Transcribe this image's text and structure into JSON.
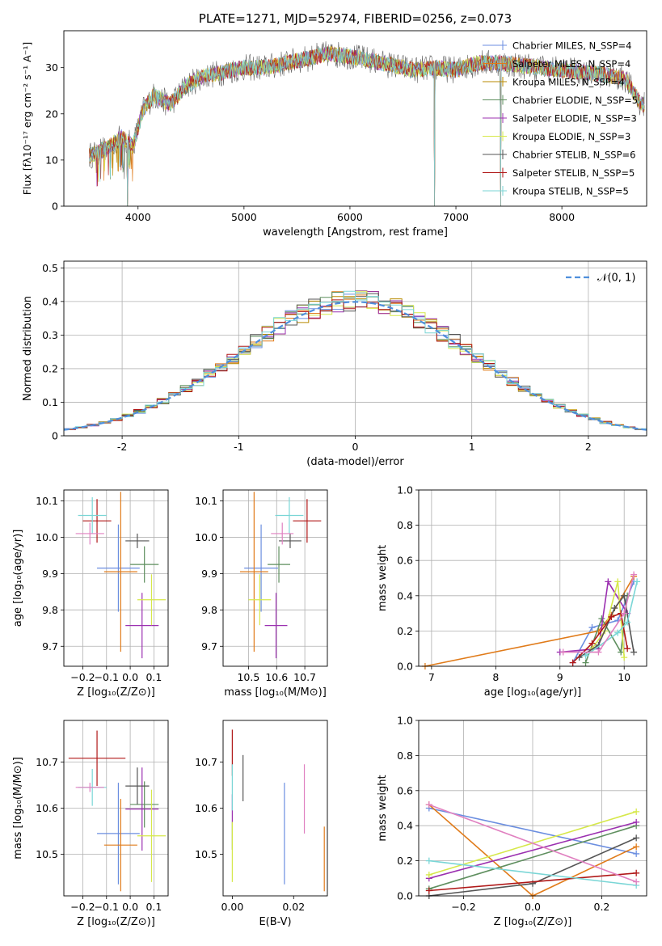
{
  "colors": {
    "blue": "#6b8ee0",
    "orange": "#e07b1a",
    "olive": "#b88a00",
    "green": "#5f8f5f",
    "purple": "#9b30b0",
    "yellow": "#d6e84a",
    "gray": "#555555",
    "red": "#b01818",
    "cyan": "#7ad6d6",
    "pink": "#e080c0",
    "gauss": "#4f8fdc"
  },
  "chart_data": [
    {
      "id": "spectrum",
      "type": "line",
      "title": "PLATE=1271, MJD=52974, FIBERID=0256, z=0.073",
      "xlabel": "wavelength [Angstrom, rest frame]",
      "ylabel": "Flux [fλ10⁻¹⁷ erg cm⁻² s⁻¹ A⁻¹]",
      "xlim": [
        3300,
        8800
      ],
      "ylim": [
        0,
        38
      ],
      "xticks": [
        4000,
        5000,
        6000,
        7000,
        8000
      ],
      "yticks": [
        0,
        10,
        20,
        30
      ],
      "legend_position": "top-right",
      "approx_continuum": {
        "x": [
          3550,
          3700,
          3850,
          3950,
          4050,
          4150,
          4300,
          4450,
          4600,
          4800,
          5000,
          5200,
          5400,
          5600,
          5800,
          6000,
          6200,
          6400,
          6600,
          6800,
          7000,
          7200,
          7400,
          7600,
          7800,
          8000,
          8200,
          8400,
          8600,
          8750
        ],
        "y": [
          11,
          12.5,
          15,
          13,
          21,
          24,
          22,
          26,
          28,
          29,
          30,
          30,
          31,
          32,
          33,
          32.5,
          31.5,
          30.5,
          29.5,
          30,
          29.5,
          31,
          31,
          30.5,
          30,
          29.5,
          29,
          28.5,
          27.5,
          22
        ]
      },
      "drops_to_zero_at": [
        3900,
        6800,
        7420
      ],
      "legend": [
        {
          "label": "Chabrier MILES, N_SSP=4",
          "color": "blue"
        },
        {
          "label": "Salpeter MILES, N_SSP=4",
          "color": "orange"
        },
        {
          "label": "Kroupa MILES, N_SSP=4",
          "color": "olive"
        },
        {
          "label": "Chabrier ELODIE, N_SSP=5",
          "color": "green"
        },
        {
          "label": "Salpeter ELODIE, N_SSP=3",
          "color": "purple"
        },
        {
          "label": "Kroupa ELODIE, N_SSP=3",
          "color": "yellow"
        },
        {
          "label": "Chabrier STELIB, N_SSP=6",
          "color": "gray"
        },
        {
          "label": "Salpeter STELIB, N_SSP=5",
          "color": "red"
        },
        {
          "label": "Kroupa STELIB, N_SSP=5",
          "color": "cyan"
        }
      ]
    },
    {
      "id": "residuals",
      "type": "histogram",
      "xlabel": "(data-model)/error",
      "ylabel": "Normed distribution",
      "xlim": [
        -2.5,
        2.5
      ],
      "ylim": [
        0,
        0.52
      ],
      "xticks": [
        -2,
        -1,
        0,
        1,
        2
      ],
      "yticks": [
        0.0,
        0.1,
        0.2,
        0.3,
        0.4,
        0.5
      ],
      "grid": true,
      "legend_position": "top-right",
      "gaussian_label": "𝒩(0, 1)",
      "bin_width": 0.1,
      "bin_start": -2.5,
      "series_colors": [
        "blue",
        "orange",
        "olive",
        "green",
        "purple",
        "yellow",
        "gray",
        "red",
        "cyan"
      ]
    },
    {
      "id": "age_vs_Z",
      "type": "scatter",
      "xlabel": "Z [log₁₀(Z/Z⊙)]",
      "ylabel": "age  [log₁₀(age/yr)]",
      "xlim": [
        -0.28,
        0.16
      ],
      "ylim": [
        9.645,
        10.13
      ],
      "xticks": [
        -0.2,
        -0.1,
        0.0,
        0.1
      ],
      "xticklabels": [
        "−0.2",
        "−0.1",
        "0.0",
        "0.1"
      ],
      "yticks": [
        9.7,
        9.8,
        9.9,
        10.0,
        10.1
      ],
      "yticklabels": [
        "9.7",
        "9.8",
        "9.9",
        "10.0",
        "10.1"
      ],
      "grid": true,
      "points": [
        {
          "c": "blue",
          "x": -0.05,
          "xe": 0.09,
          "y": 9.915,
          "ye": 0.12
        },
        {
          "c": "orange",
          "x": -0.04,
          "xe": 0.07,
          "y": 9.905,
          "ye": 0.22
        },
        {
          "c": "green",
          "x": 0.06,
          "xe": 0.06,
          "y": 9.925,
          "ye": 0.05
        },
        {
          "c": "purple",
          "x": 0.05,
          "xe": 0.07,
          "y": 9.757,
          "ye": 0.09
        },
        {
          "c": "yellow",
          "x": 0.09,
          "xe": 0.06,
          "y": 9.828,
          "ye": 0.07
        },
        {
          "c": "gray",
          "x": 0.03,
          "xe": 0.05,
          "y": 9.99,
          "ye": 0.02
        },
        {
          "c": "red",
          "x": -0.14,
          "xe": 0.06,
          "y": 10.045,
          "ye": 0.06
        },
        {
          "c": "cyan",
          "x": -0.16,
          "xe": 0.06,
          "y": 10.06,
          "ye": 0.05
        },
        {
          "c": "pink",
          "x": -0.17,
          "xe": 0.06,
          "y": 10.01,
          "ye": 0.03
        }
      ]
    },
    {
      "id": "age_vs_mass",
      "type": "scatter",
      "xlabel": "mass [log₁₀(M/M⊙)]",
      "ylabel": "",
      "xlim": [
        10.41,
        10.78
      ],
      "ylim": [
        9.645,
        10.13
      ],
      "xticks": [
        10.5,
        10.6,
        10.7
      ],
      "xticklabels": [
        "10.5",
        "10.6",
        "10.7"
      ],
      "yticks": [
        9.7,
        9.8,
        9.9,
        10.0,
        10.1
      ],
      "yticklabels": [
        "9.7",
        "9.8",
        "9.9",
        "10.0",
        "10.1"
      ],
      "grid": true,
      "points": [
        {
          "c": "blue",
          "x": 10.545,
          "xe": 0.06,
          "y": 9.915,
          "ye": 0.12
        },
        {
          "c": "orange",
          "x": 10.52,
          "xe": 0.05,
          "y": 9.905,
          "ye": 0.22
        },
        {
          "c": "green",
          "x": 10.608,
          "xe": 0.04,
          "y": 9.925,
          "ye": 0.05
        },
        {
          "c": "purple",
          "x": 10.598,
          "xe": 0.04,
          "y": 9.757,
          "ye": 0.09
        },
        {
          "c": "yellow",
          "x": 10.54,
          "xe": 0.04,
          "y": 9.828,
          "ye": 0.07
        },
        {
          "c": "gray",
          "x": 10.648,
          "xe": 0.04,
          "y": 9.99,
          "ye": 0.02
        },
        {
          "c": "red",
          "x": 10.708,
          "xe": 0.05,
          "y": 10.045,
          "ye": 0.06
        },
        {
          "c": "cyan",
          "x": 10.645,
          "xe": 0.05,
          "y": 10.06,
          "ye": 0.05
        },
        {
          "c": "pink",
          "x": 10.62,
          "xe": 0.04,
          "y": 10.01,
          "ye": 0.03
        }
      ]
    },
    {
      "id": "weight_vs_age",
      "type": "line",
      "xlabel": "age  [log₁₀(age/yr)]",
      "ylabel": "mass weight",
      "xlim": [
        6.8,
        10.35
      ],
      "ylim": [
        0,
        1
      ],
      "xticks": [
        7,
        8,
        9,
        10
      ],
      "xticklabels": [
        "7",
        "8",
        "9",
        "10"
      ],
      "yticks": [
        0.0,
        0.2,
        0.4,
        0.6,
        0.8,
        1.0
      ],
      "yticklabels": [
        "0.0",
        "0.2",
        "0.4",
        "0.6",
        "0.8",
        "1.0"
      ],
      "grid": true,
      "series": [
        {
          "c": "blue",
          "x": [
            9.2,
            9.5,
            9.9,
            10.15
          ],
          "y": [
            0.02,
            0.22,
            0.26,
            0.48
          ]
        },
        {
          "c": "orange",
          "x": [
            6.9,
            9.6,
            9.8,
            10.15
          ],
          "y": [
            0.0,
            0.2,
            0.29,
            0.51
          ]
        },
        {
          "c": "green",
          "x": [
            9.4,
            9.65,
            9.95,
            10.05
          ],
          "y": [
            0.02,
            0.27,
            0.08,
            0.4
          ]
        },
        {
          "c": "purple",
          "x": [
            9.0,
            9.6,
            9.75,
            10.05
          ],
          "y": [
            0.08,
            0.1,
            0.48,
            0.3
          ]
        },
        {
          "c": "yellow",
          "x": [
            9.5,
            9.7,
            9.9,
            10.0
          ],
          "y": [
            0.1,
            0.2,
            0.48,
            0.05
          ]
        },
        {
          "c": "gray",
          "x": [
            9.3,
            9.6,
            9.85,
            10.0,
            10.15
          ],
          "y": [
            0.05,
            0.12,
            0.33,
            0.4,
            0.08
          ]
        },
        {
          "c": "red",
          "x": [
            9.2,
            9.5,
            9.8,
            9.95,
            10.05
          ],
          "y": [
            0.02,
            0.13,
            0.28,
            0.3,
            0.1
          ]
        },
        {
          "c": "cyan",
          "x": [
            9.4,
            9.9,
            10.05,
            10.2
          ],
          "y": [
            0.06,
            0.19,
            0.25,
            0.48
          ]
        },
        {
          "c": "pink",
          "x": [
            9.05,
            9.6,
            10.0,
            10.15
          ],
          "y": [
            0.08,
            0.08,
            0.3,
            0.52
          ]
        }
      ]
    },
    {
      "id": "mass_vs_Z",
      "type": "scatter",
      "xlabel": "Z [log₁₀(Z/Z⊙)]",
      "ylabel": "mass [log₁₀(M/M⊙)]",
      "xlim": [
        -0.28,
        0.16
      ],
      "ylim": [
        10.41,
        10.79
      ],
      "xticks": [
        -0.2,
        -0.1,
        0.0,
        0.1
      ],
      "xticklabels": [
        "−0.2",
        "−0.1",
        "0.0",
        "0.1"
      ],
      "yticks": [
        10.5,
        10.6,
        10.7
      ],
      "yticklabels": [
        "10.5",
        "10.6",
        "10.7"
      ],
      "grid": true,
      "points": [
        {
          "c": "blue",
          "x": -0.05,
          "xe": 0.09,
          "y": 10.545,
          "ye": 0.11
        },
        {
          "c": "orange",
          "x": -0.04,
          "xe": 0.07,
          "y": 10.52,
          "ye": 0.1
        },
        {
          "c": "green",
          "x": 0.06,
          "xe": 0.06,
          "y": 10.608,
          "ye": 0.05
        },
        {
          "c": "purple",
          "x": 0.05,
          "xe": 0.07,
          "y": 10.598,
          "ye": 0.09
        },
        {
          "c": "yellow",
          "x": 0.09,
          "xe": 0.06,
          "y": 10.54,
          "ye": 0.1
        },
        {
          "c": "gray",
          "x": 0.03,
          "xe": 0.05,
          "y": 10.648,
          "ye": 0.04
        },
        {
          "c": "red",
          "x": -0.14,
          "xe": 0.12,
          "y": 10.708,
          "ye": 0.06
        },
        {
          "c": "cyan",
          "x": -0.16,
          "xe": 0.06,
          "y": 10.645,
          "ye": 0.04
        },
        {
          "c": "pink",
          "x": -0.17,
          "xe": 0.06,
          "y": 10.645,
          "ye": 0.01
        }
      ]
    },
    {
      "id": "mass_vs_ebv",
      "type": "scatter",
      "xlabel": "E(B-V)",
      "ylabel": "",
      "xlim": [
        -0.003,
        0.031
      ],
      "ylim": [
        10.41,
        10.79
      ],
      "xticks": [
        0.0,
        0.02
      ],
      "xticklabels": [
        "0.00",
        "0.02"
      ],
      "yticks": [
        10.5,
        10.6,
        10.7
      ],
      "yticklabels": [
        "10.5",
        "10.6",
        "10.7"
      ],
      "grid": false,
      "points": [
        {
          "c": "blue",
          "x": 0.017,
          "y": 10.545,
          "ye": 0.11
        },
        {
          "c": "orange",
          "x": 0.03,
          "y": 10.49,
          "ye": 0.07
        },
        {
          "c": "green",
          "x": 0.0,
          "y": 10.54,
          "ye": 0.03
        },
        {
          "c": "purple",
          "x": 0.0,
          "y": 10.6,
          "ye": 0.03
        },
        {
          "c": "yellow",
          "x": 0.0,
          "y": 10.505,
          "ye": 0.065
        },
        {
          "c": "gray",
          "x": 0.0035,
          "y": 10.665,
          "ye": 0.05
        },
        {
          "c": "red",
          "x": 0.0,
          "y": 10.72,
          "ye": 0.05
        },
        {
          "c": "cyan",
          "x": 0.0,
          "y": 10.645,
          "ye": 0.05
        },
        {
          "c": "pink",
          "x": 0.0235,
          "y": 10.62,
          "ye": 0.075
        }
      ]
    },
    {
      "id": "weight_vs_Z",
      "type": "line",
      "xlabel": "Z [log₁₀(Z/Z⊙)]",
      "ylabel": "mass weight",
      "xlim": [
        -0.33,
        0.33
      ],
      "ylim": [
        0,
        1
      ],
      "xticks": [
        -0.2,
        0.0,
        0.2
      ],
      "xticklabels": [
        "−0.2",
        "0.0",
        "0.2"
      ],
      "yticks": [
        0.0,
        0.2,
        0.4,
        0.6,
        0.8,
        1.0
      ],
      "yticklabels": [
        "0.0",
        "0.2",
        "0.4",
        "0.6",
        "0.8",
        "1.0"
      ],
      "grid": true,
      "series": [
        {
          "c": "blue",
          "x": [
            -0.3,
            0.3
          ],
          "y": [
            0.5,
            0.24
          ]
        },
        {
          "c": "orange",
          "x": [
            -0.3,
            0.0,
            0.3
          ],
          "y": [
            0.52,
            0.0,
            0.28
          ]
        },
        {
          "c": "green",
          "x": [
            -0.3,
            0.3
          ],
          "y": [
            0.04,
            0.4
          ]
        },
        {
          "c": "purple",
          "x": [
            -0.3,
            0.3
          ],
          "y": [
            0.1,
            0.42
          ]
        },
        {
          "c": "yellow",
          "x": [
            -0.3,
            0.3
          ],
          "y": [
            0.12,
            0.48
          ]
        },
        {
          "c": "gray",
          "x": [
            -0.3,
            0.0,
            0.3
          ],
          "y": [
            0.0,
            0.07,
            0.33
          ]
        },
        {
          "c": "red",
          "x": [
            -0.3,
            0.3
          ],
          "y": [
            0.03,
            0.13
          ]
        },
        {
          "c": "cyan",
          "x": [
            -0.3,
            0.3
          ],
          "y": [
            0.2,
            0.06
          ]
        },
        {
          "c": "pink",
          "x": [
            -0.3,
            0.3
          ],
          "y": [
            0.52,
            0.08
          ]
        }
      ]
    }
  ]
}
